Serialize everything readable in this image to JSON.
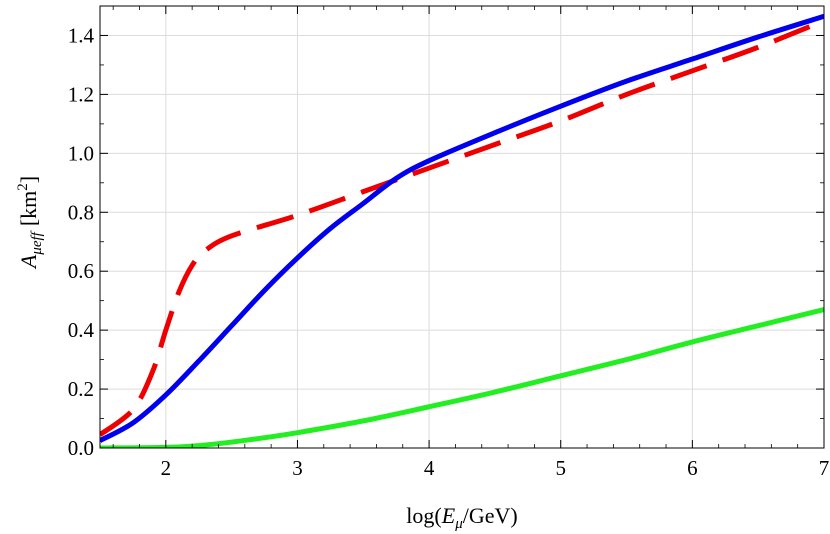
{
  "chart_data": {
    "type": "line",
    "xlabel": "log(Eμ/GeV)",
    "xlabel_parts": {
      "pre": "log(",
      "var": "E",
      "sub": "μ",
      "post": "/GeV)"
    },
    "ylabel": "Aμeff [km2]",
    "ylabel_parts": {
      "var": "A",
      "sub": "μeff",
      "unit_pre": "[km",
      "sup": "2",
      "unit_post": "]"
    },
    "xlim": [
      1.5,
      7
    ],
    "ylim": [
      0,
      1.5
    ],
    "xticks": [
      2,
      3,
      4,
      5,
      6,
      7
    ],
    "yticks": [
      0.0,
      0.2,
      0.4,
      0.6,
      0.8,
      1.0,
      1.2,
      1.4
    ],
    "xtick_labels": [
      "2",
      "3",
      "4",
      "5",
      "6",
      "7"
    ],
    "ytick_labels": [
      "0.0",
      "0.2",
      "0.4",
      "0.6",
      "0.8",
      "1.0",
      "1.2",
      "1.4"
    ],
    "grid": true,
    "legend": "none",
    "series": [
      {
        "color": "#0000ee",
        "style": "solid",
        "x": [
          1.5,
          1.75,
          2.0,
          2.25,
          2.5,
          2.75,
          3.0,
          3.25,
          3.5,
          3.75,
          4.0,
          4.5,
          5.0,
          5.5,
          6.0,
          6.5,
          7.0
        ],
        "y": [
          0.025,
          0.085,
          0.18,
          0.295,
          0.415,
          0.535,
          0.645,
          0.745,
          0.83,
          0.915,
          0.975,
          1.07,
          1.16,
          1.245,
          1.32,
          1.395,
          1.465
        ]
      },
      {
        "color": "#ee0000",
        "style": "dashed",
        "x": [
          1.5,
          1.75,
          1.9,
          2.0,
          2.1,
          2.2,
          2.3,
          2.5,
          3.0,
          3.5,
          4.0,
          4.5,
          5.0,
          5.5,
          6.0,
          6.5,
          7.0
        ],
        "y": [
          0.045,
          0.13,
          0.26,
          0.4,
          0.53,
          0.62,
          0.67,
          0.72,
          0.79,
          0.87,
          0.95,
          1.03,
          1.11,
          1.2,
          1.28,
          1.36,
          1.45
        ]
      },
      {
        "color": "#22ee22",
        "style": "solid",
        "x": [
          1.5,
          2.0,
          2.25,
          2.5,
          2.75,
          3.0,
          3.5,
          4.0,
          4.5,
          5.0,
          5.5,
          6.0,
          6.5,
          7.0
        ],
        "y": [
          0.0,
          0.002,
          0.008,
          0.02,
          0.035,
          0.052,
          0.092,
          0.14,
          0.19,
          0.245,
          0.3,
          0.36,
          0.415,
          0.47
        ]
      }
    ]
  }
}
